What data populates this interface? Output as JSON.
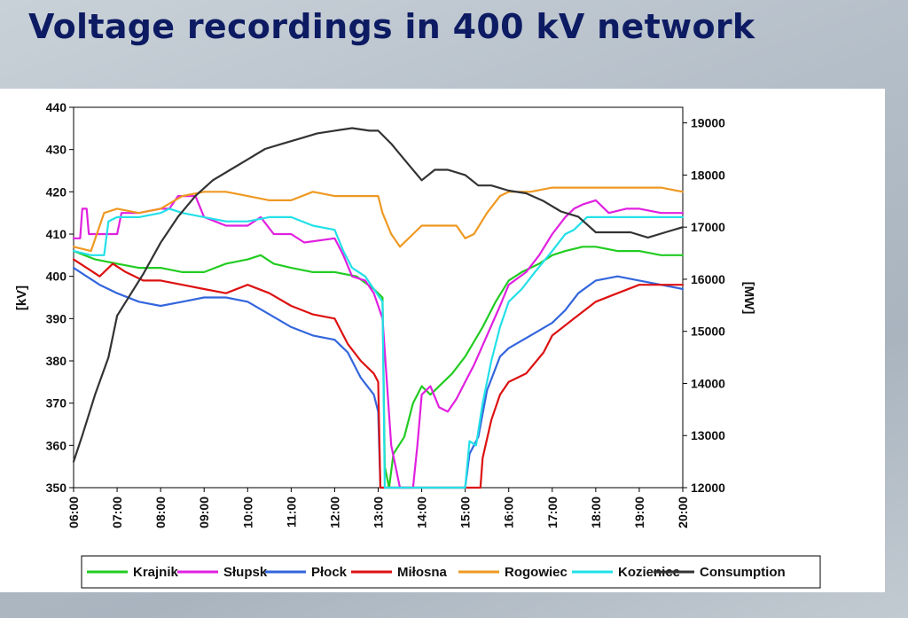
{
  "slide": {
    "title": "Voltage recordings in 400 kV network"
  },
  "chart_data": {
    "type": "line",
    "title": "Voltage recordings in 400 kV network",
    "xlabel": "",
    "ylabel": "[kV]",
    "y2label": "[MW]",
    "x_ticks": [
      "06:00",
      "07:00",
      "08:00",
      "09:00",
      "10:00",
      "11:00",
      "12:00",
      "13:00",
      "14:00",
      "15:00",
      "16:00",
      "17:00",
      "18:00",
      "19:00",
      "20:00"
    ],
    "xlim": [
      6,
      20
    ],
    "ylim": [
      350,
      440
    ],
    "y_ticks": [
      350,
      360,
      370,
      380,
      390,
      400,
      410,
      420,
      430,
      440
    ],
    "y2lim": [
      12000,
      19300
    ],
    "y2_ticks": [
      12000,
      13000,
      14000,
      15000,
      16000,
      17000,
      18000,
      19000
    ],
    "grid": false,
    "legend": "bottom",
    "series": [
      {
        "name": "Krajnik",
        "color": "#22cc22",
        "axis": "left",
        "points": [
          [
            6,
            406
          ],
          [
            6.5,
            404
          ],
          [
            7,
            403
          ],
          [
            7.5,
            402
          ],
          [
            8,
            402
          ],
          [
            8.5,
            401
          ],
          [
            9,
            401
          ],
          [
            9.5,
            403
          ],
          [
            10,
            404
          ],
          [
            10.3,
            405
          ],
          [
            10.6,
            403
          ],
          [
            11,
            402
          ],
          [
            11.5,
            401
          ],
          [
            12,
            401
          ],
          [
            12.5,
            400
          ],
          [
            12.9,
            397
          ],
          [
            13.1,
            395
          ],
          [
            13.15,
            355
          ],
          [
            13.25,
            350
          ],
          [
            13.35,
            358
          ],
          [
            13.6,
            362
          ],
          [
            13.8,
            370
          ],
          [
            14,
            374
          ],
          [
            14.2,
            372
          ],
          [
            14.4,
            374
          ],
          [
            14.7,
            377
          ],
          [
            15,
            381
          ],
          [
            15.4,
            388
          ],
          [
            15.7,
            394
          ],
          [
            16,
            399
          ],
          [
            16.3,
            401
          ],
          [
            16.7,
            403
          ],
          [
            17,
            405
          ],
          [
            17.3,
            406
          ],
          [
            17.7,
            407
          ],
          [
            18,
            407
          ],
          [
            18.5,
            406
          ],
          [
            19,
            406
          ],
          [
            19.5,
            405
          ],
          [
            20,
            405
          ]
        ]
      },
      {
        "name": "Słupsk",
        "color": "#e020e0",
        "axis": "left",
        "points": [
          [
            6,
            409
          ],
          [
            6.15,
            409
          ],
          [
            6.2,
            416
          ],
          [
            6.3,
            416
          ],
          [
            6.35,
            410
          ],
          [
            6.7,
            410
          ],
          [
            7,
            410
          ],
          [
            7.1,
            415
          ],
          [
            7.5,
            415
          ],
          [
            8,
            416
          ],
          [
            8.2,
            416
          ],
          [
            8.4,
            419
          ],
          [
            8.8,
            419
          ],
          [
            9,
            414
          ],
          [
            9.5,
            412
          ],
          [
            10,
            412
          ],
          [
            10.3,
            414
          ],
          [
            10.6,
            410
          ],
          [
            11,
            410
          ],
          [
            11.3,
            408
          ],
          [
            12,
            409
          ],
          [
            12.2,
            405
          ],
          [
            12.4,
            400
          ],
          [
            12.7,
            399
          ],
          [
            12.9,
            396
          ],
          [
            13.1,
            390
          ],
          [
            13.3,
            360
          ],
          [
            13.5,
            350
          ],
          [
            13.8,
            350
          ],
          [
            13.9,
            360
          ],
          [
            14,
            372
          ],
          [
            14.2,
            374
          ],
          [
            14.4,
            369
          ],
          [
            14.6,
            368
          ],
          [
            14.8,
            371
          ],
          [
            15,
            375
          ],
          [
            15.2,
            379
          ],
          [
            15.5,
            386
          ],
          [
            15.8,
            393
          ],
          [
            16,
            398
          ],
          [
            16.4,
            401
          ],
          [
            16.7,
            405
          ],
          [
            17,
            410
          ],
          [
            17.3,
            414
          ],
          [
            17.5,
            416
          ],
          [
            17.7,
            417
          ],
          [
            18,
            418
          ],
          [
            18.3,
            415
          ],
          [
            18.7,
            416
          ],
          [
            19,
            416
          ],
          [
            19.5,
            415
          ],
          [
            20,
            415
          ]
        ]
      },
      {
        "name": "Płock",
        "color": "#3366dd",
        "axis": "left",
        "points": [
          [
            6,
            402
          ],
          [
            6.3,
            400
          ],
          [
            6.6,
            398
          ],
          [
            7,
            396
          ],
          [
            7.5,
            394
          ],
          [
            8,
            393
          ],
          [
            8.5,
            394
          ],
          [
            9,
            395
          ],
          [
            9.5,
            395
          ],
          [
            10,
            394
          ],
          [
            10.5,
            391
          ],
          [
            11,
            388
          ],
          [
            11.5,
            386
          ],
          [
            12,
            385
          ],
          [
            12.3,
            382
          ],
          [
            12.6,
            376
          ],
          [
            12.9,
            372
          ],
          [
            13,
            368
          ],
          [
            13.05,
            350
          ],
          [
            15,
            350
          ],
          [
            15.1,
            358
          ],
          [
            15.3,
            362
          ],
          [
            15.5,
            373
          ],
          [
            15.8,
            381
          ],
          [
            16,
            383
          ],
          [
            16.5,
            386
          ],
          [
            17,
            389
          ],
          [
            17.3,
            392
          ],
          [
            17.6,
            396
          ],
          [
            18,
            399
          ],
          [
            18.5,
            400
          ],
          [
            19,
            399
          ],
          [
            19.5,
            398
          ],
          [
            20,
            397
          ]
        ]
      },
      {
        "name": "Miłosna",
        "color": "#dd1111",
        "axis": "left",
        "points": [
          [
            6,
            404
          ],
          [
            6.3,
            402
          ],
          [
            6.6,
            400
          ],
          [
            6.9,
            403
          ],
          [
            7.2,
            401
          ],
          [
            7.6,
            399
          ],
          [
            8,
            399
          ],
          [
            8.5,
            398
          ],
          [
            9,
            397
          ],
          [
            9.5,
            396
          ],
          [
            10,
            398
          ],
          [
            10.5,
            396
          ],
          [
            11,
            393
          ],
          [
            11.5,
            391
          ],
          [
            12,
            390
          ],
          [
            12.3,
            384
          ],
          [
            12.6,
            380
          ],
          [
            12.9,
            377
          ],
          [
            13,
            375
          ],
          [
            13.05,
            350
          ],
          [
            15.35,
            350
          ],
          [
            15.4,
            357
          ],
          [
            15.6,
            366
          ],
          [
            15.8,
            372
          ],
          [
            16,
            375
          ],
          [
            16.4,
            377
          ],
          [
            16.8,
            382
          ],
          [
            17,
            386
          ],
          [
            17.5,
            390
          ],
          [
            18,
            394
          ],
          [
            18.5,
            396
          ],
          [
            19,
            398
          ],
          [
            19.5,
            398
          ],
          [
            20,
            398
          ]
        ]
      },
      {
        "name": "Rogowiec",
        "color": "#ee9922",
        "axis": "left",
        "points": [
          [
            6,
            407
          ],
          [
            6.4,
            406
          ],
          [
            6.7,
            415
          ],
          [
            7,
            416
          ],
          [
            7.5,
            415
          ],
          [
            8,
            416
          ],
          [
            8.5,
            419
          ],
          [
            9,
            420
          ],
          [
            9.5,
            420
          ],
          [
            10,
            419
          ],
          [
            10.5,
            418
          ],
          [
            11,
            418
          ],
          [
            11.5,
            420
          ],
          [
            12,
            419
          ],
          [
            12.5,
            419
          ],
          [
            13,
            419
          ],
          [
            13.1,
            415
          ],
          [
            13.3,
            410
          ],
          [
            13.5,
            407
          ],
          [
            13.8,
            410
          ],
          [
            14,
            412
          ],
          [
            14.5,
            412
          ],
          [
            14.8,
            412
          ],
          [
            15,
            409
          ],
          [
            15.2,
            410
          ],
          [
            15.5,
            415
          ],
          [
            15.8,
            419
          ],
          [
            16,
            420
          ],
          [
            16.5,
            420
          ],
          [
            17,
            421
          ],
          [
            17.5,
            421
          ],
          [
            18,
            421
          ],
          [
            18.5,
            421
          ],
          [
            19,
            421
          ],
          [
            19.5,
            421
          ],
          [
            20,
            420
          ]
        ]
      },
      {
        "name": "Kozienice",
        "color": "#22e0e8",
        "axis": "left",
        "points": [
          [
            6,
            406
          ],
          [
            6.4,
            405
          ],
          [
            6.7,
            405
          ],
          [
            6.8,
            413
          ],
          [
            7,
            414
          ],
          [
            7.5,
            414
          ],
          [
            8,
            415
          ],
          [
            8.2,
            416
          ],
          [
            8.5,
            415
          ],
          [
            9,
            414
          ],
          [
            9.5,
            413
          ],
          [
            10,
            413
          ],
          [
            10.5,
            414
          ],
          [
            11,
            414
          ],
          [
            11.5,
            412
          ],
          [
            12,
            411
          ],
          [
            12.2,
            406
          ],
          [
            12.4,
            402
          ],
          [
            12.7,
            400
          ],
          [
            12.9,
            397
          ],
          [
            13.1,
            394
          ],
          [
            13.15,
            350
          ],
          [
            15,
            350
          ],
          [
            15.1,
            361
          ],
          [
            15.25,
            360
          ],
          [
            15.4,
            370
          ],
          [
            15.6,
            380
          ],
          [
            15.8,
            388
          ],
          [
            16,
            394
          ],
          [
            16.3,
            397
          ],
          [
            16.6,
            401
          ],
          [
            17,
            406
          ],
          [
            17.3,
            410
          ],
          [
            17.5,
            411
          ],
          [
            17.8,
            414
          ],
          [
            18,
            414
          ],
          [
            18.5,
            414
          ],
          [
            19,
            414
          ],
          [
            19.5,
            414
          ],
          [
            20,
            414
          ]
        ]
      },
      {
        "name": "Consumption",
        "color": "#333333",
        "axis": "right",
        "points": [
          [
            6,
            12500
          ],
          [
            6.2,
            13000
          ],
          [
            6.5,
            13800
          ],
          [
            6.8,
            14500
          ],
          [
            7,
            15300
          ],
          [
            7.3,
            15700
          ],
          [
            7.6,
            16100
          ],
          [
            8,
            16700
          ],
          [
            8.4,
            17200
          ],
          [
            8.8,
            17600
          ],
          [
            9.2,
            17900
          ],
          [
            9.6,
            18100
          ],
          [
            10,
            18300
          ],
          [
            10.4,
            18500
          ],
          [
            10.8,
            18600
          ],
          [
            11.2,
            18700
          ],
          [
            11.6,
            18800
          ],
          [
            12,
            18850
          ],
          [
            12.4,
            18900
          ],
          [
            12.8,
            18850
          ],
          [
            13,
            18850
          ],
          [
            13.3,
            18600
          ],
          [
            13.6,
            18300
          ],
          [
            14,
            17900
          ],
          [
            14.3,
            18100
          ],
          [
            14.6,
            18100
          ],
          [
            15,
            18000
          ],
          [
            15.3,
            17800
          ],
          [
            15.6,
            17800
          ],
          [
            16,
            17700
          ],
          [
            16.4,
            17650
          ],
          [
            16.8,
            17500
          ],
          [
            17.2,
            17300
          ],
          [
            17.6,
            17200
          ],
          [
            18,
            16900
          ],
          [
            18.4,
            16900
          ],
          [
            18.8,
            16900
          ],
          [
            19.2,
            16800
          ],
          [
            19.6,
            16900
          ],
          [
            20,
            17000
          ]
        ]
      }
    ]
  }
}
